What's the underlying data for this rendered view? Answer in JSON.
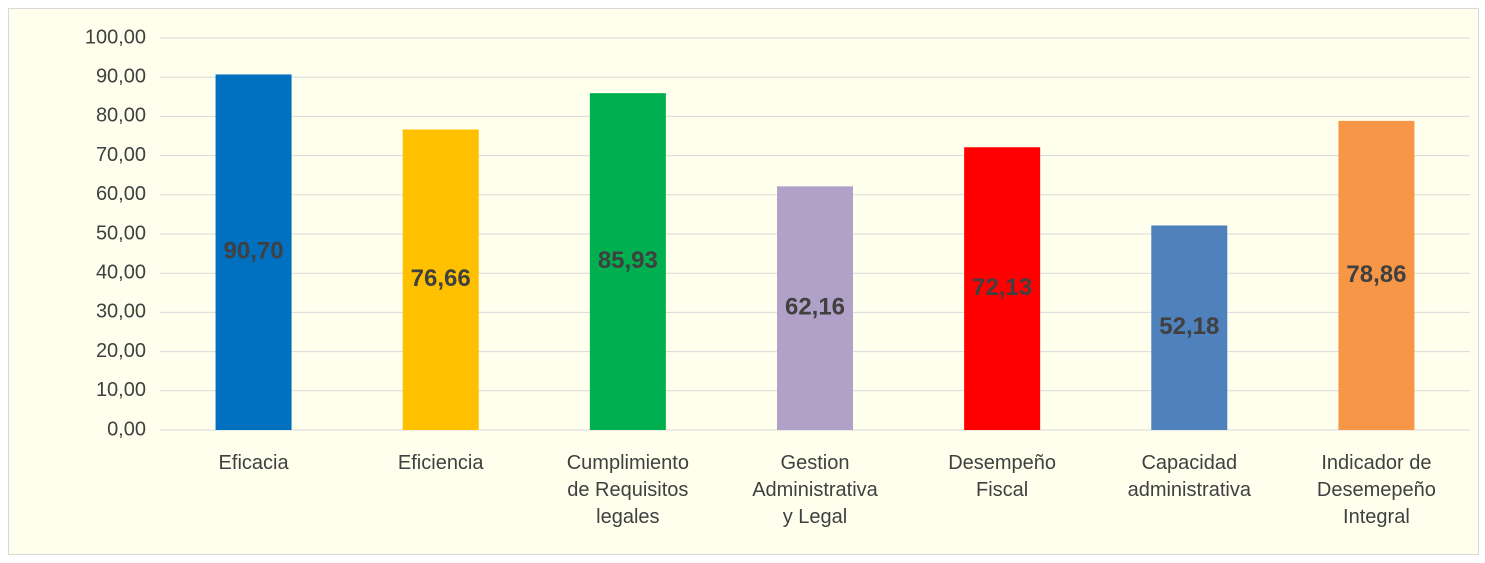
{
  "chart_data": {
    "type": "bar",
    "categories": [
      "Eficacia",
      "Eficiencia",
      "Cumplimiento\nde Requisitos\nlegales",
      "Gestion\nAdministrativa\ny Legal",
      "Desempeño\nFiscal",
      "Capacidad\nadministrativa",
      "Indicador de\nDesemepeño\nIntegral"
    ],
    "values": [
      90.7,
      76.66,
      85.93,
      62.16,
      72.13,
      52.18,
      78.86
    ],
    "value_labels": [
      "90,70",
      "76,66",
      "85,93",
      "62,16",
      "72,13",
      "52,18",
      "78,86"
    ],
    "colors": [
      "#0070c0",
      "#ffc000",
      "#00b050",
      "#b1a0c7",
      "#ff0000",
      "#4f81bd",
      "#f79646"
    ],
    "ylim": [
      0,
      100
    ],
    "yticks": [
      {
        "value": 0,
        "label": "0,00"
      },
      {
        "value": 10,
        "label": "10,00"
      },
      {
        "value": 20,
        "label": "20,00"
      },
      {
        "value": 30,
        "label": "30,00"
      },
      {
        "value": 40,
        "label": "40,00"
      },
      {
        "value": 50,
        "label": "50,00"
      },
      {
        "value": 60,
        "label": "60,00"
      },
      {
        "value": 70,
        "label": "70,00"
      },
      {
        "value": 80,
        "label": "80,00"
      },
      {
        "value": 90,
        "label": "90,00"
      },
      {
        "value": 100,
        "label": "100,00"
      }
    ],
    "grid": true
  }
}
